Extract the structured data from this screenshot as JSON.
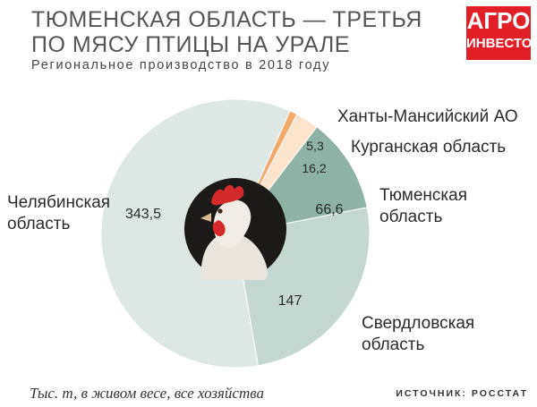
{
  "header": {
    "title": "ТЮМЕНСКАЯ ОБЛАСТЬ — ТРЕТЬЯ ПО МЯСУ ПТИЦЫ НА УРАЛЕ",
    "subtitle": "Региональное производство в 2018 году"
  },
  "logo": {
    "line1": "АГРО",
    "line2": "ИНВЕСТОР",
    "color": "#e21f26"
  },
  "chart_data": {
    "type": "pie",
    "title": "ТЮМЕНСКАЯ ОБЛАСТЬ — ТРЕТЬЯ ПО МЯСУ ПТИЦЫ НА УРАЛЕ",
    "subtitle": "Региональное производство в 2018 году",
    "unit_note": "Тыс. т, в живом весе, все хозяйства",
    "slices": [
      {
        "name": "Ханты-Мансийский АО",
        "value": 5.3,
        "label": "5,3",
        "color": "#f3a96a"
      },
      {
        "name": "Курганская область",
        "value": 16.2,
        "label": "16,2",
        "color": "#fde4cc"
      },
      {
        "name": "Тюменская область",
        "value": 66.6,
        "label": "66,6",
        "color": "#8fb1a6"
      },
      {
        "name": "Свердловская область",
        "value": 147,
        "label": "147",
        "color": "#c4d7d1"
      },
      {
        "name": "Челябинская область",
        "value": 343.5,
        "label": "343,5",
        "color": "#dde7e3"
      }
    ],
    "legend": "direct labels around pie"
  },
  "footer": {
    "note": "Тыс. т, в живом весе, все хозяйства",
    "source": "ИСТОЧНИК: РОССТАТ"
  }
}
